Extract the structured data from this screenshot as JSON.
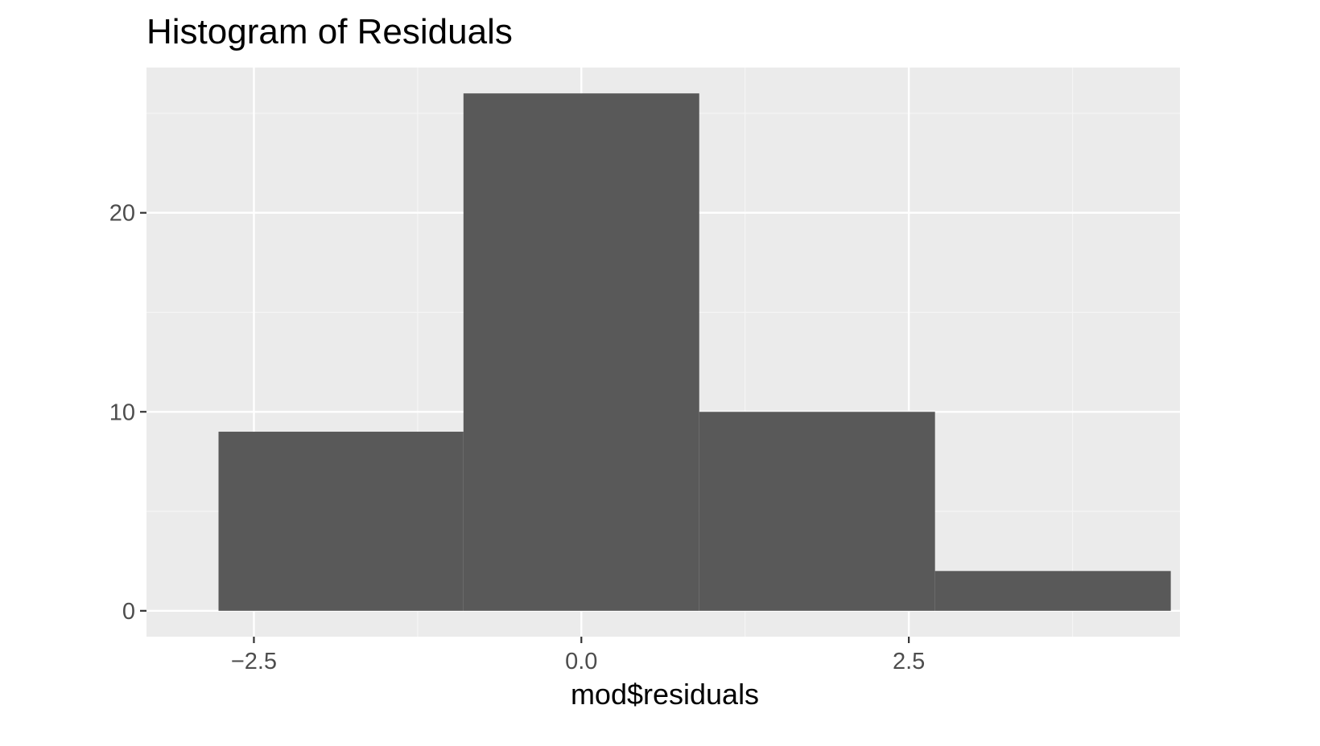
{
  "chart_data": {
    "type": "bar",
    "title": "Histogram of Residuals",
    "xlabel": "mod$residuals",
    "ylabel": "",
    "bins": [
      {
        "x_start": -2.77,
        "x_end": -0.9,
        "count": 9
      },
      {
        "x_start": -0.9,
        "x_end": 0.9,
        "count": 26
      },
      {
        "x_start": 0.9,
        "x_end": 2.7,
        "count": 10
      },
      {
        "x_start": 2.7,
        "x_end": 4.5,
        "count": 2
      }
    ],
    "x_ticks": [
      -2.5,
      0.0,
      2.5
    ],
    "x_tick_labels": [
      "−2.5",
      "0.0",
      "2.5"
    ],
    "y_ticks": [
      0,
      10,
      20
    ],
    "y_tick_labels": [
      "0",
      "10",
      "20"
    ],
    "xlim": [
      -3.32,
      4.57
    ],
    "ylim": [
      -1.3,
      27.3
    ],
    "grid": true,
    "colors": {
      "panel_background": "#ebebeb",
      "grid_major": "#ffffff",
      "grid_minor": "#f5f5f5",
      "bar_fill": "#595959",
      "tick_text": "#4d4d4d",
      "tick_mark": "#333333"
    }
  }
}
